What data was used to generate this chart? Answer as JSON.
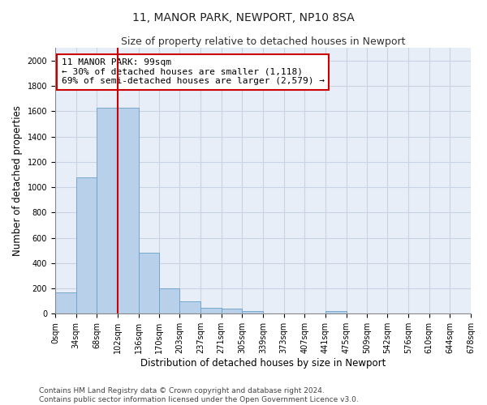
{
  "title": "11, MANOR PARK, NEWPORT, NP10 8SA",
  "subtitle": "Size of property relative to detached houses in Newport",
  "xlabel": "Distribution of detached houses by size in Newport",
  "ylabel": "Number of detached properties",
  "footer_line1": "Contains HM Land Registry data © Crown copyright and database right 2024.",
  "footer_line2": "Contains public sector information licensed under the Open Government Licence v3.0.",
  "annotation_line1": "11 MANOR PARK: 99sqm",
  "annotation_line2": "← 30% of detached houses are smaller (1,118)",
  "annotation_line3": "69% of semi-detached houses are larger (2,579) →",
  "property_size_sqm": 99,
  "bar_values": [
    170,
    1080,
    1630,
    1630,
    480,
    200,
    100,
    45,
    40,
    22,
    0,
    0,
    0,
    20,
    0,
    0,
    0,
    0,
    0,
    0
  ],
  "bin_edges": [
    0,
    34,
    68,
    102,
    136,
    170,
    203,
    237,
    271,
    305,
    339,
    373,
    407,
    441,
    475,
    509,
    542,
    576,
    610,
    644,
    678
  ],
  "bar_color": "#b8d0ea",
  "bar_edge_color": "#6a9fc8",
  "vline_color": "#cc0000",
  "vline_x": 102,
  "ylim": [
    0,
    2100
  ],
  "yticks": [
    0,
    200,
    400,
    600,
    800,
    1000,
    1200,
    1400,
    1600,
    1800,
    2000
  ],
  "grid_color": "#c8d4e4",
  "bg_color": "#e8eef8",
  "title_fontsize": 10,
  "subtitle_fontsize": 9,
  "axis_label_fontsize": 8.5,
  "tick_fontsize": 7,
  "annotation_fontsize": 8,
  "footer_fontsize": 6.5
}
